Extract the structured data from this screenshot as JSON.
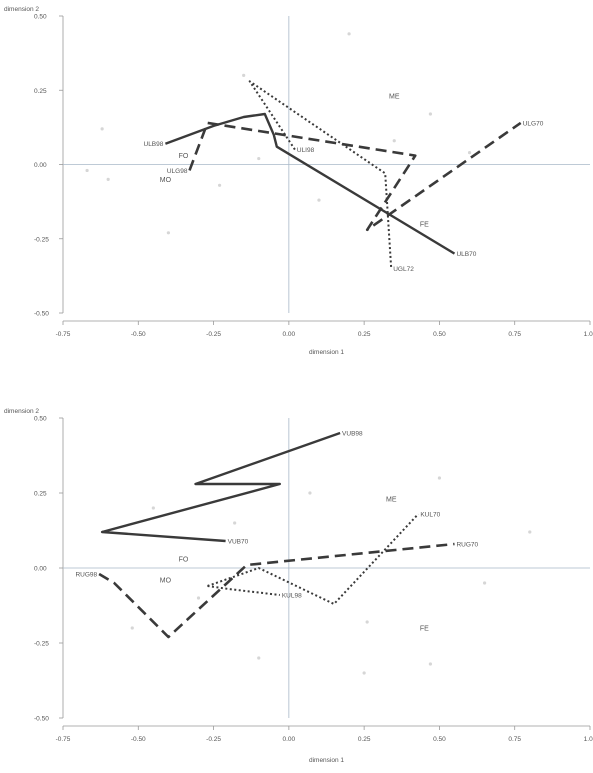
{
  "chart_data": [
    {
      "type": "line",
      "xlabel": "dimension 1",
      "ylabel": "dimension 2",
      "xlim": [
        -0.75,
        1.0
      ],
      "ylim": [
        -0.5,
        0.5
      ],
      "xticks": [
        -0.75,
        -0.5,
        -0.25,
        0.0,
        0.25,
        0.5,
        0.75,
        1.0
      ],
      "yticks": [
        -0.5,
        -0.25,
        0.0,
        0.25,
        0.5
      ],
      "xtick_labels": [
        "-0.75",
        "-0.50",
        "-0.25",
        "0.00",
        "0.25",
        "0.50",
        "0.75",
        "1.00"
      ],
      "ytick_labels": [
        "-0.50",
        "-0.25",
        "0.00",
        "0.25",
        "0.50"
      ],
      "grid": false,
      "reference_lines": {
        "x": 0,
        "y": 0
      },
      "category_points": [
        {
          "label": "ME",
          "x": 0.35,
          "y": 0.23
        },
        {
          "label": "FO",
          "x": -0.35,
          "y": 0.03
        },
        {
          "label": "MO",
          "x": -0.41,
          "y": -0.05
        },
        {
          "label": "FE",
          "x": 0.45,
          "y": -0.2
        }
      ],
      "series": [
        {
          "style": "solid",
          "points": [
            {
              "x": -0.41,
              "y": 0.07,
              "label": "ULB98"
            },
            {
              "x": -0.25,
              "y": 0.13
            },
            {
              "x": -0.15,
              "y": 0.16
            },
            {
              "x": -0.08,
              "y": 0.17
            },
            {
              "x": -0.05,
              "y": 0.1
            },
            {
              "x": -0.04,
              "y": 0.06
            },
            {
              "x": 0.55,
              "y": -0.3,
              "label": "ULB70"
            }
          ]
        },
        {
          "style": "dashed",
          "points": [
            {
              "x": -0.33,
              "y": -0.02,
              "label": "ULG98"
            },
            {
              "x": -0.27,
              "y": 0.14
            },
            {
              "x": 0.42,
              "y": 0.03
            },
            {
              "x": 0.26,
              "y": -0.22
            },
            {
              "x": 0.77,
              "y": 0.14,
              "label": "ULG70"
            }
          ]
        },
        {
          "style": "dotted",
          "points": [
            {
              "x": 0.02,
              "y": 0.05,
              "label": "ULI98"
            },
            {
              "x": -0.13,
              "y": 0.28
            },
            {
              "x": 0.32,
              "y": -0.03
            },
            {
              "x": 0.34,
              "y": -0.35,
              "label": "UGL72"
            }
          ]
        }
      ],
      "scatter_bg": [
        {
          "x": 0.2,
          "y": 0.44
        },
        {
          "x": -0.15,
          "y": 0.3
        },
        {
          "x": 0.47,
          "y": 0.17
        },
        {
          "x": -0.62,
          "y": 0.12
        },
        {
          "x": -0.67,
          "y": -0.02
        },
        {
          "x": -0.23,
          "y": -0.07
        },
        {
          "x": -0.4,
          "y": -0.23
        },
        {
          "x": 0.1,
          "y": -0.12
        },
        {
          "x": 0.6,
          "y": 0.04
        },
        {
          "x": -0.6,
          "y": -0.05
        },
        {
          "x": 0.35,
          "y": 0.08
        },
        {
          "x": -0.1,
          "y": 0.02
        }
      ]
    },
    {
      "type": "line",
      "xlabel": "dimension 1",
      "ylabel": "dimension 2",
      "xlim": [
        -0.75,
        1.0
      ],
      "ylim": [
        -0.5,
        0.5
      ],
      "xticks": [
        -0.75,
        -0.5,
        -0.25,
        0.0,
        0.25,
        0.5,
        0.75,
        1.0
      ],
      "yticks": [
        -0.5,
        -0.25,
        0.0,
        0.25,
        0.5
      ],
      "xtick_labels": [
        "-0.75",
        "-0.50",
        "-0.25",
        "0.00",
        "0.25",
        "0.50",
        "0.75",
        "1.00"
      ],
      "ytick_labels": [
        "-0.50",
        "-0.25",
        "0.00",
        "0.25",
        "0.50"
      ],
      "grid": false,
      "reference_lines": {
        "x": 0,
        "y": 0
      },
      "category_points": [
        {
          "label": "ME",
          "x": 0.34,
          "y": 0.23
        },
        {
          "label": "FO",
          "x": -0.35,
          "y": 0.03
        },
        {
          "label": "MO",
          "x": -0.41,
          "y": -0.04
        },
        {
          "label": "FE",
          "x": 0.45,
          "y": -0.2
        }
      ],
      "series": [
        {
          "style": "solid",
          "points": [
            {
              "x": 0.17,
              "y": 0.45,
              "label": "VUB98"
            },
            {
              "x": -0.31,
              "y": 0.28
            },
            {
              "x": -0.03,
              "y": 0.28
            },
            {
              "x": -0.62,
              "y": 0.12
            },
            {
              "x": -0.21,
              "y": 0.09,
              "label": "VUB70"
            }
          ]
        },
        {
          "style": "dashed",
          "points": [
            {
              "x": -0.63,
              "y": -0.02,
              "label": "RUG98"
            },
            {
              "x": -0.58,
              "y": -0.05
            },
            {
              "x": -0.4,
              "y": -0.23
            },
            {
              "x": -0.14,
              "y": 0.01
            },
            {
              "x": 0.55,
              "y": 0.08,
              "label": "RUG70"
            }
          ]
        },
        {
          "style": "dotted",
          "points": [
            {
              "x": -0.27,
              "y": -0.06
            },
            {
              "x": -0.1,
              "y": 0.0
            },
            {
              "x": 0.15,
              "y": -0.12
            },
            {
              "x": 0.43,
              "y": 0.18,
              "label": "KUL70"
            }
          ]
        },
        {
          "style": "dotted",
          "points": [
            {
              "x": -0.27,
              "y": -0.06
            },
            {
              "x": -0.2,
              "y": -0.07
            },
            {
              "x": -0.03,
              "y": -0.09,
              "label": "KUL98"
            }
          ]
        }
      ],
      "scatter_bg": [
        {
          "x": 0.8,
          "y": 0.12
        },
        {
          "x": -0.45,
          "y": 0.2
        },
        {
          "x": -0.18,
          "y": 0.15
        },
        {
          "x": 0.26,
          "y": -0.18
        },
        {
          "x": 0.47,
          "y": -0.32
        },
        {
          "x": -0.3,
          "y": -0.1
        },
        {
          "x": 0.5,
          "y": 0.3
        },
        {
          "x": -0.52,
          "y": -0.2
        },
        {
          "x": 0.07,
          "y": 0.25
        },
        {
          "x": 0.25,
          "y": -0.35
        },
        {
          "x": -0.1,
          "y": -0.3
        },
        {
          "x": 0.65,
          "y": -0.05
        }
      ]
    }
  ]
}
